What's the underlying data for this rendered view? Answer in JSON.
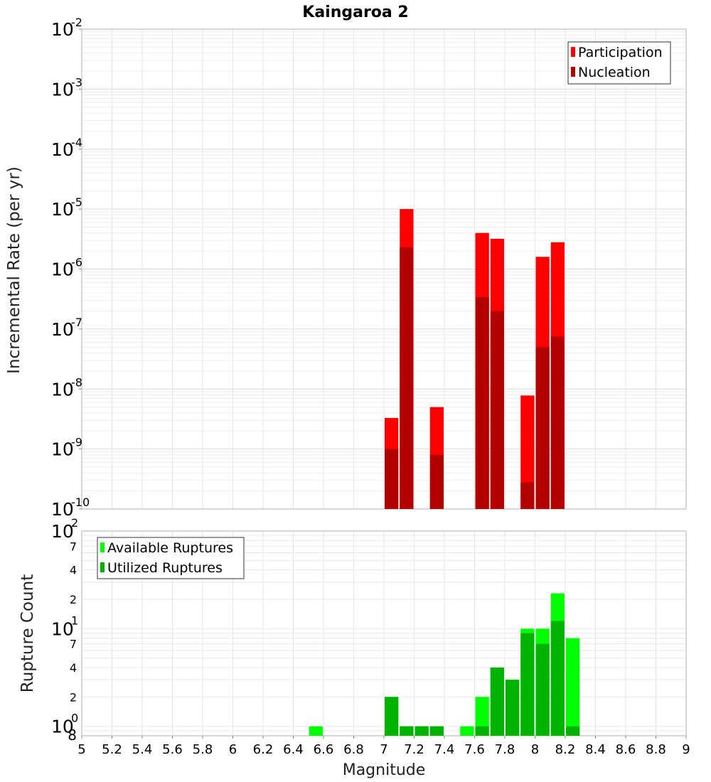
{
  "chart_data": [
    {
      "id": "rate",
      "type": "bar",
      "title": "Kaingaroa 2",
      "xlabel": "",
      "ylabel": "Incremental Rate (per yr)",
      "yscale": "log",
      "ylim": [
        1e-10,
        0.01
      ],
      "xlim": [
        5,
        9
      ],
      "bin_width": 0.1,
      "grid": true,
      "legend_position": "top-right",
      "y_ticks": [
        {
          "base": "10",
          "exp": "-10"
        },
        {
          "base": "10",
          "exp": "-9"
        },
        {
          "base": "10",
          "exp": "-8"
        },
        {
          "base": "10",
          "exp": "-7"
        },
        {
          "base": "10",
          "exp": "-6"
        },
        {
          "base": "10",
          "exp": "-5"
        },
        {
          "base": "10",
          "exp": "-4"
        },
        {
          "base": "10",
          "exp": "-3"
        },
        {
          "base": "10",
          "exp": "-2"
        }
      ],
      "x": [
        7.05,
        7.15,
        7.35,
        7.65,
        7.75,
        7.95,
        8.05,
        8.15
      ],
      "series": [
        {
          "name": "Participation",
          "color": "#ff0000",
          "values": [
            3.3e-09,
            1e-05,
            5e-09,
            4e-06,
            3.2e-06,
            7.8e-09,
            1.6e-06,
            2.8e-06
          ]
        },
        {
          "name": "Nucleation",
          "color": "#b30000",
          "values": [
            1e-09,
            2.3e-06,
            8e-10,
            3.4e-07,
            2e-07,
            2.8e-10,
            5e-08,
            7.5e-08
          ]
        }
      ]
    },
    {
      "id": "count",
      "type": "bar",
      "title": "",
      "xlabel": "Magnitude",
      "ylabel": "Rupture Count",
      "yscale": "log",
      "ylim": [
        0.8,
        100
      ],
      "xlim": [
        5,
        9
      ],
      "bin_width": 0.1,
      "grid": true,
      "legend_position": "top-left",
      "x_ticks": [
        "5",
        "5.2",
        "5.4",
        "5.6",
        "5.8",
        "6",
        "6.2",
        "6.4",
        "6.6",
        "6.8",
        "7",
        "7.2",
        "7.4",
        "7.6",
        "7.8",
        "8",
        "8.2",
        "8.4",
        "8.6",
        "8.8",
        "9"
      ],
      "y_major_ticks": [
        {
          "value": 1,
          "base": "10",
          "exp": "0"
        },
        {
          "value": 10,
          "base": "10",
          "exp": "1"
        },
        {
          "value": 100,
          "base": "10",
          "exp": "2"
        }
      ],
      "y_minor_ticks": [
        {
          "value": 0.8,
          "label": "8"
        },
        {
          "value": 2,
          "label": "2"
        },
        {
          "value": 4,
          "label": "4"
        },
        {
          "value": 7,
          "label": "7"
        },
        {
          "value": 20,
          "label": "2"
        },
        {
          "value": 40,
          "label": "4"
        },
        {
          "value": 70,
          "label": "7"
        }
      ],
      "x": [
        6.55,
        7.05,
        7.15,
        7.25,
        7.35,
        7.55,
        7.65,
        7.75,
        7.85,
        7.95,
        8.05,
        8.15,
        8.25
      ],
      "series": [
        {
          "name": "Available Ruptures",
          "color": "#00ff00",
          "values": [
            1,
            2,
            1,
            1,
            1,
            1,
            2,
            4,
            3,
            10,
            10,
            23,
            8
          ]
        },
        {
          "name": "Utilized Ruptures",
          "color": "#00b300",
          "values": [
            0,
            2,
            1,
            1,
            1,
            0,
            1,
            4,
            3,
            9,
            7,
            12,
            1
          ]
        }
      ]
    }
  ]
}
